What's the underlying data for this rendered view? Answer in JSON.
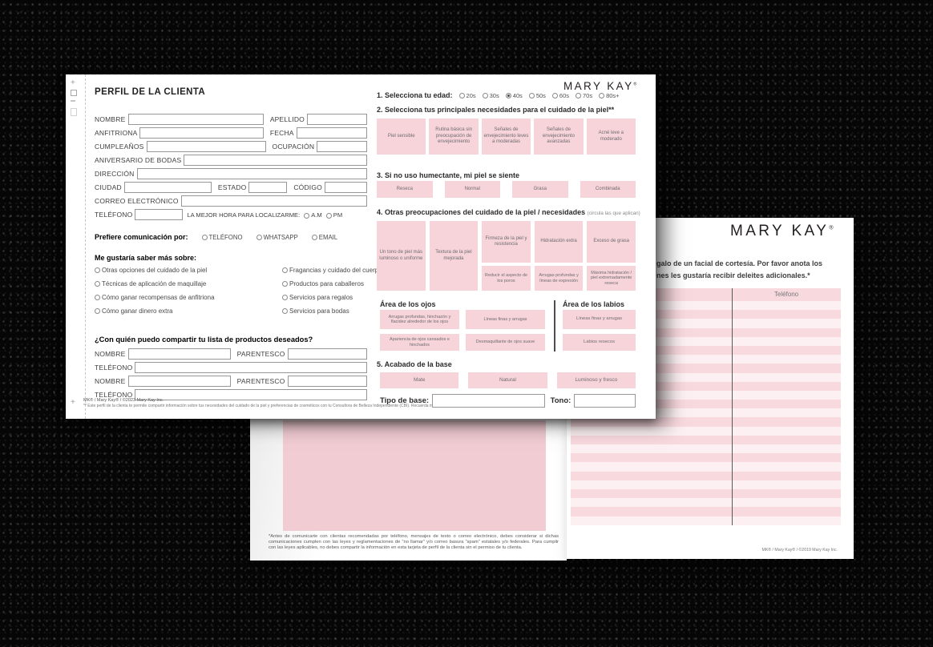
{
  "colors": {
    "button_pink": "#f7d3da",
    "button_text": "#6d6e71",
    "stripe_pink": "#f8d9de",
    "stripe_light": "#fcf0f2",
    "panel_pink": "#f1ccd3"
  },
  "front": {
    "title": "PERFIL DE LA CLIENTA",
    "brand": "MARY KAY",
    "brand_reg": "®",
    "labels": {
      "nombre": "NOMBRE",
      "apellido": "APELLIDO",
      "anfitriona": "ANFITRIONA",
      "fecha": "FECHA",
      "cumpleanos": "CUMPLEAÑOS",
      "ocupacion": "OCUPACIÓN",
      "aniversario": "ANIVERSARIO DE BODAS",
      "direccion": "DIRECCIÓN",
      "ciudad": "CIUDAD",
      "estado": "ESTADO",
      "codigo": "CÓDIGO",
      "correo": "CORREO ELECTRÓNICO",
      "telefono": "TELÉFONO",
      "mejor_hora": "LA MEJOR HORA PARA LOCALIZARME:",
      "am": "A.M",
      "pm": "PM",
      "parentesco": "PARENTESCO"
    },
    "comunicacion": {
      "label": "Prefiere comunicación por:",
      "options": [
        "TELÉFONO",
        "WHATSAPP",
        "EMAIL"
      ]
    },
    "saber": {
      "label": "Me gustaría saber más sobre:",
      "options": [
        "Otras opciones del cuidado de la piel",
        "Fragancias y cuidado del cuerpo",
        "Técnicas de aplicación de maquillaje",
        "Productos para caballeros",
        "Cómo ganar recompensas de anfitriona",
        "Servicios para regalos",
        "Cómo ganar dinero extra",
        "Servicios para bodas"
      ]
    },
    "compartir": {
      "label": "¿Con quién puedo compartir tu lista de productos deseados?"
    },
    "q1": {
      "label": "1. Selecciona tu edad:",
      "options": [
        "20s",
        "30s",
        "40s",
        "50s",
        "60s",
        "70s",
        "80s+"
      ],
      "selected": "40s"
    },
    "q2": {
      "label": "2. Selecciona tus principales necesidades para el cuidado de la piel**",
      "buttons": [
        "Piel sensible",
        "Rutina básica sin preocupación de envejecimiento",
        "Señales de envejecimiento leves a moderadas",
        "Señales de envejecimiento avanzadas",
        "Acné leve a moderado"
      ]
    },
    "q3": {
      "label": "3. Si no uso humectante, mi piel se siente",
      "buttons": [
        "Reseca",
        "Normal",
        "Grasa",
        "Combinada"
      ]
    },
    "q4": {
      "label": "4. Otras preocupaciones del cuidado de la piel / necesidades",
      "note": "(circula las que aplican)",
      "tall": [
        "Un tono de piel más luminoso o uniforme",
        "Textura de la piel mejorada"
      ],
      "pairs": [
        {
          "top": "Firmeza de la piel y resistencia",
          "bottom": "Reducir el aspecto de los poros"
        },
        {
          "top": "Hidratación extra",
          "bottom": "Arrugas profundas y líneas de expresión"
        },
        {
          "top": "Exceso de grasa",
          "bottom": "Máxima hidratación / piel extremadamente reseca"
        }
      ]
    },
    "ojos": {
      "label": "Área de los ojos",
      "buttons": [
        "Arrugas profundas, hinchazón y flacidez alrededor de los ojos",
        "Líneas finas y arrugas",
        "Apariencia de ojos cansados e hinchados",
        "Desmaquillante de ojos suave"
      ]
    },
    "labios": {
      "label": "Área de los labios",
      "buttons": [
        "Líneas finas y arrugas",
        "Labios resecos"
      ]
    },
    "q5": {
      "label": "5. Acabado de la base",
      "buttons": [
        "Mate",
        "Natural",
        "Luminoso y fresco"
      ]
    },
    "tipo_base": "Tipo de base:",
    "tono": "Tono:",
    "footer_line1": "MK® / Mary Kay® / ©2023 Mary Kay Inc.",
    "footer_line2": "** Este perfil de la clienta te permite compartir información sobre tus necesidades del cuidado de la piel y preferencias de cosméticos con tu Consultora de Belleza Independiente (CBI). Recuerda mantener esta información confidencial."
  },
  "right_page": {
    "brand": "MARY KAY",
    "brand_reg": "®",
    "intro_line1": "galo de un facial de cortesía.  Por favor anota los",
    "intro_line2": "nes les gustaría recibir deleites adicionales.*",
    "col_telefono": "Teléfono",
    "footer": "MK® / Mary Kay® / ©2019 Mary Kay Inc."
  },
  "middle_page": {
    "disclaimer": "*Antes de comunicarte con clientas recomendadas por teléfono, mensajes de texto o correo electrónico, debes considerar si dichas comunicaciones cumplen con las leyes y reglamentaciones de “no llamar” y/o correo basura “spam” estatales y/o federales. Para cumplir con las leyes aplicables, no debes compartir la información en esta tarjeta de perfil de la clienta sin el permiso de tu clienta."
  }
}
